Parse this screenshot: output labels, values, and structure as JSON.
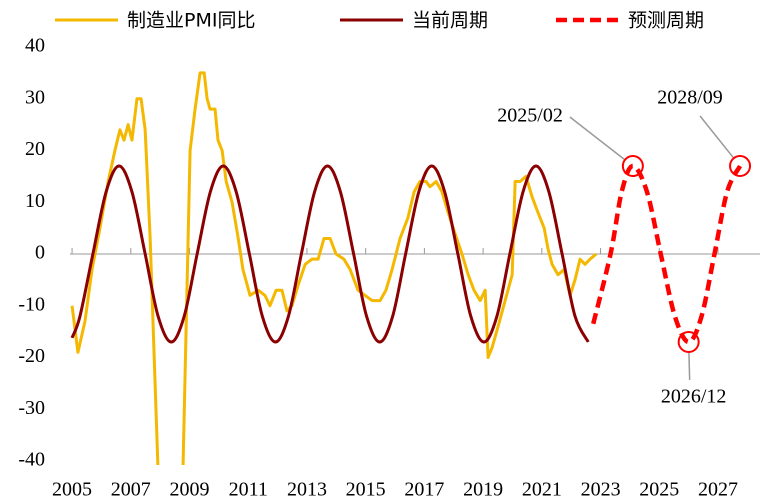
{
  "chart_data": {
    "type": "line",
    "xlim": [
      2004.93,
      2028.43
    ],
    "xticks": [
      2005,
      2007,
      2009,
      2011,
      2013,
      2015,
      2017,
      2019,
      2021,
      2023,
      2025,
      2027
    ],
    "ylim": [
      -40,
      40
    ],
    "yticks": [
      -40,
      -30,
      -20,
      -10,
      0,
      10,
      20,
      30,
      40
    ],
    "series": [
      {
        "name": "制造业PMI同比",
        "color": "#f5b800",
        "dash": false,
        "curve": "straight",
        "x": [
          2005.0,
          2005.2,
          2005.44,
          2005.68,
          2005.95,
          2006.23,
          2006.46,
          2006.63,
          2006.77,
          2006.91,
          2007.04,
          2007.21,
          2007.35,
          2007.49,
          2007.66,
          2007.93,
          2008.78,
          2009.02,
          2009.19,
          2009.36,
          2009.5,
          2009.6,
          2009.7,
          2009.87,
          2009.97,
          2010.11,
          2010.25,
          2010.45,
          2010.66,
          2010.82,
          2011.06,
          2011.34,
          2011.57,
          2011.74,
          2011.95,
          2012.15,
          2012.32,
          2012.49,
          2012.7,
          2012.94,
          2013.17,
          2013.38,
          2013.58,
          2013.79,
          2013.99,
          2014.26,
          2014.47,
          2014.74,
          2014.98,
          2015.22,
          2015.49,
          2015.69,
          2015.9,
          2016.17,
          2016.44,
          2016.65,
          2016.85,
          2017.06,
          2017.19,
          2017.4,
          2017.6,
          2017.81,
          2018.04,
          2018.28,
          2018.49,
          2018.69,
          2018.9,
          2019.07,
          2019.17,
          2019.31,
          2019.51,
          2019.75,
          2019.99,
          2020.09,
          2020.26,
          2020.46,
          2020.67,
          2020.87,
          2021.08,
          2021.21,
          2021.35,
          2021.55,
          2021.76,
          2021.96,
          2022.13,
          2022.3,
          2022.47,
          2022.64,
          2022.85
        ],
        "values": [
          -10,
          -19,
          -13,
          -3,
          5,
          14,
          20,
          24,
          22,
          25,
          22,
          30,
          30,
          24,
          3,
          -42,
          -41,
          20,
          28,
          35,
          35,
          30,
          28,
          28,
          22,
          20,
          14,
          10,
          3,
          -3,
          -8,
          -7,
          -8,
          -10,
          -7,
          -7,
          -11,
          -10,
          -6,
          -2,
          -1,
          -1,
          3,
          3,
          0,
          -1,
          -3,
          -7,
          -8,
          -9,
          -9,
          -7,
          -3,
          3,
          7,
          12,
          14,
          14,
          13,
          14,
          12,
          8,
          4,
          0,
          -4,
          -7,
          -9,
          -7,
          -20,
          -18,
          -14,
          -9,
          -4,
          14,
          14,
          15,
          11,
          8,
          5,
          1,
          -2,
          -4,
          -3,
          -8,
          -5,
          -1,
          -2,
          -1,
          0
        ]
      },
      {
        "name": "当前周期",
        "color": "#8b0000",
        "dash": false,
        "curve": "smooth",
        "x": [
          2005.0,
          2005.27,
          2005.71,
          2006.16,
          2006.6,
          2007.04,
          2007.49,
          2007.93,
          2008.38,
          2008.82,
          2009.26,
          2009.71,
          2010.15,
          2010.59,
          2011.04,
          2011.48,
          2011.93,
          2012.37,
          2012.81,
          2013.26,
          2013.7,
          2014.14,
          2014.59,
          2015.03,
          2015.48,
          2015.92,
          2016.36,
          2016.81,
          2017.25,
          2017.69,
          2018.14,
          2018.58,
          2019.03,
          2019.47,
          2019.91,
          2020.36,
          2020.8,
          2021.24,
          2021.69,
          2022.13,
          2022.58
        ],
        "values": [
          -16.2,
          -12.02,
          0,
          12.02,
          17,
          12.02,
          0,
          -12.02,
          -17,
          -12.02,
          0,
          12.02,
          17,
          12.02,
          0,
          -12.02,
          -17,
          -12.02,
          0,
          12.02,
          17,
          12.02,
          0,
          -12.02,
          -17,
          -12.02,
          0,
          12.02,
          17,
          12.02,
          0,
          -12.02,
          -17,
          -12.02,
          0,
          12.02,
          17,
          12.02,
          0,
          -12.02,
          -17
        ]
      },
      {
        "name": "预测周期",
        "color": "#ff0000",
        "dash": true,
        "curve": "smooth",
        "x": [
          2022.75,
          2023.34,
          2023.72,
          2024.1,
          2024.58,
          2025.05,
          2025.53,
          2026.0,
          2026.44,
          2026.88,
          2027.31,
          2027.75
        ],
        "values": [
          -13.5,
          0,
          12.02,
          17,
          12.02,
          0,
          -12.02,
          -17,
          -12.02,
          0,
          12.02,
          17
        ]
      }
    ],
    "annotations": [
      {
        "text": "2025/02",
        "x": 2024.1,
        "y": 17
      },
      {
        "text": "2026/12",
        "x": 2026.0,
        "y": -17
      },
      {
        "text": "2028/09",
        "x": 2027.75,
        "y": 17
      }
    ]
  }
}
